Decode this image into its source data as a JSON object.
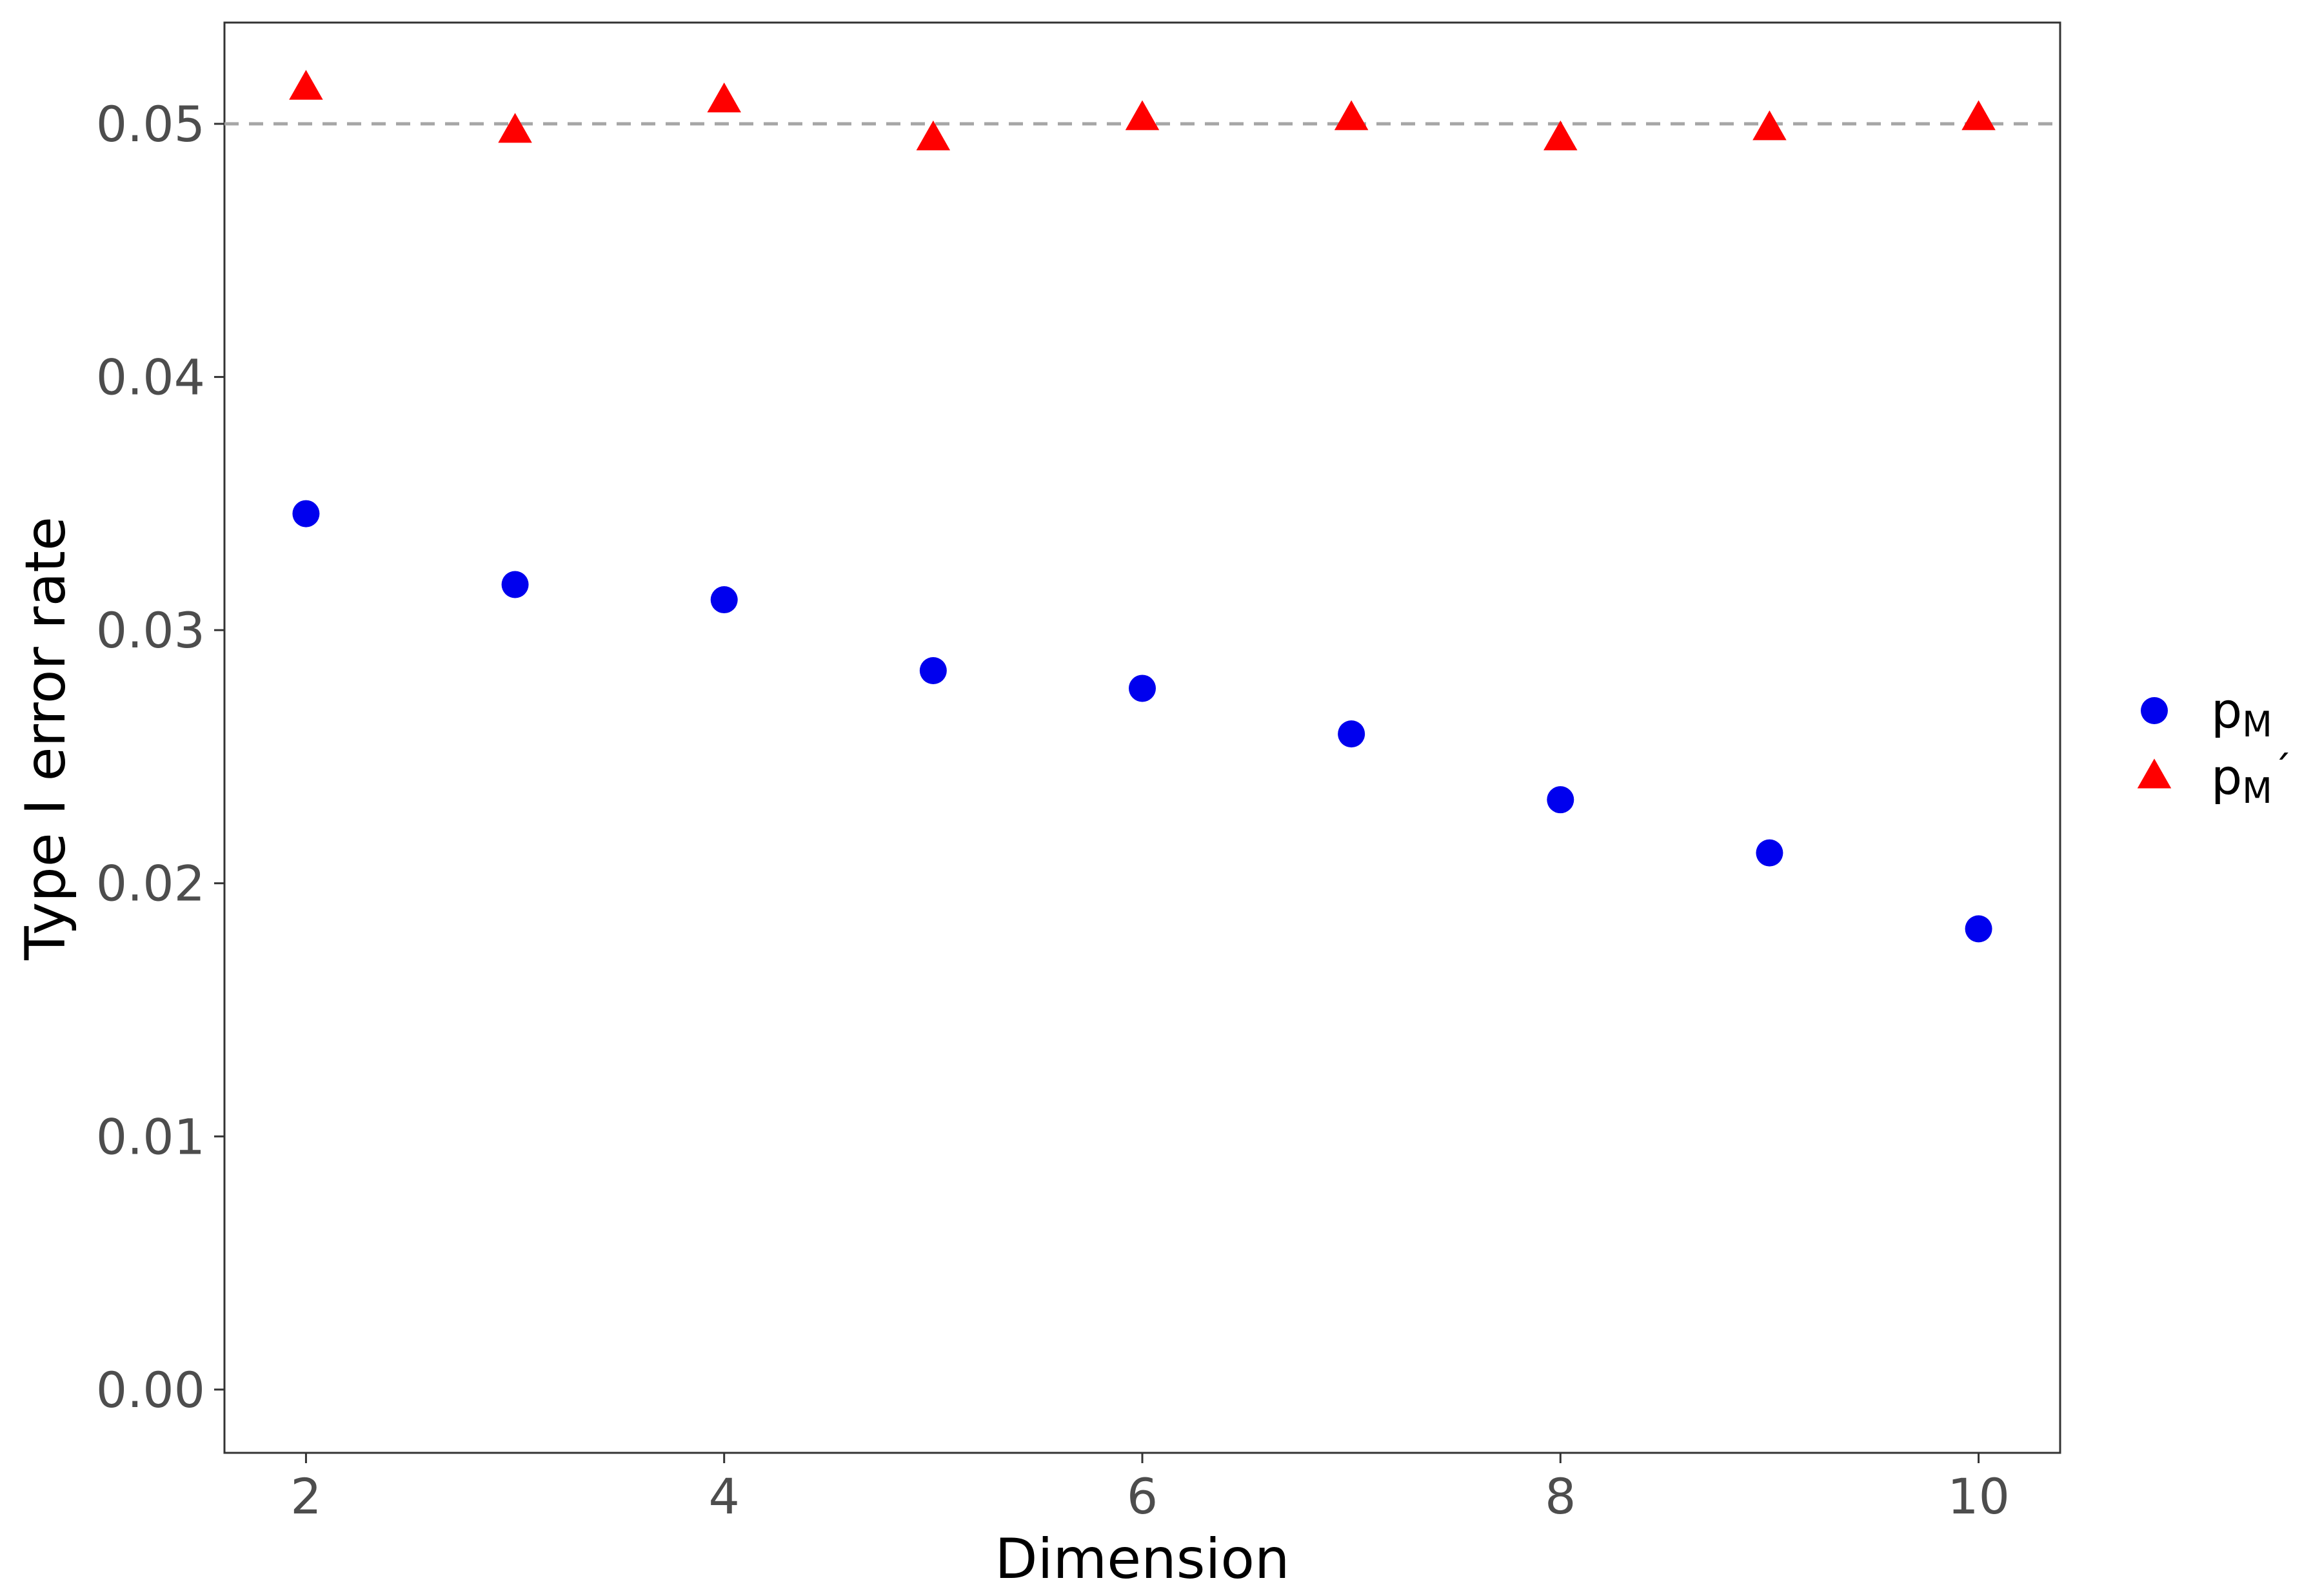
{
  "chart_data": {
    "type": "scatter",
    "xlabel": "Dimension",
    "ylabel": "Type I error rate",
    "xlim": [
      1.61,
      10.39
    ],
    "ylim": [
      -0.0025,
      0.054
    ],
    "x_ticks": [
      "2",
      "4",
      "6",
      "8",
      "10"
    ],
    "y_ticks": [
      "0.00",
      "0.01",
      "0.02",
      "0.03",
      "0.04",
      "0.05"
    ],
    "reference_line": {
      "y": 0.05,
      "style": "dashed",
      "color": "#a6a6a6"
    },
    "grid": false,
    "legend_position": "right",
    "x": [
      2,
      3,
      4,
      5,
      6,
      7,
      8,
      9,
      10
    ],
    "series": [
      {
        "legend_base": "p",
        "legend_sub": "M",
        "legend_prime": "",
        "marker": "circle",
        "color": "#0000ee",
        "values": [
          0.0346,
          0.0318,
          0.0312,
          0.0284,
          0.0277,
          0.0259,
          0.0233,
          0.0212,
          0.0182
        ]
      },
      {
        "legend_base": "p",
        "legend_sub": "M",
        "legend_prime": "´",
        "marker": "triangle",
        "color": "#ff0000",
        "values": [
          0.0514,
          0.0497,
          0.0509,
          0.0494,
          0.0502,
          0.0502,
          0.0494,
          0.0498,
          0.0502
        ]
      }
    ]
  }
}
